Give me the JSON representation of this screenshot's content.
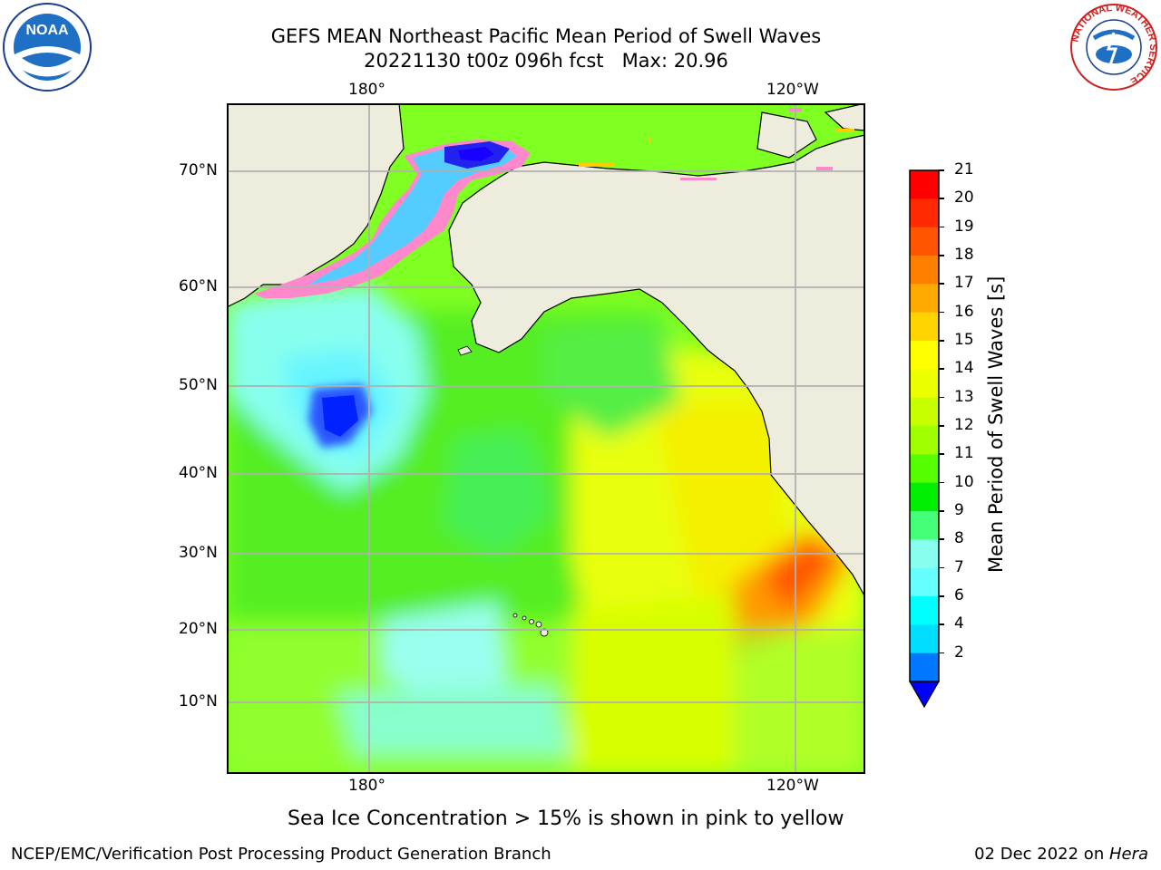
{
  "title": {
    "line1": "GEFS MEAN Northeast Pacific Mean Period of Swell Waves",
    "line2": "20221130 t00z 096h fcst   Max: 20.96"
  },
  "map": {
    "lon_ticks": [
      "180°",
      "120°W"
    ],
    "lat_ticks": [
      "70°N",
      "60°N",
      "50°N",
      "40°N",
      "30°N",
      "20°N",
      "10°N"
    ],
    "land_color": "#eeecdc",
    "grid_color": "#b0b0b0"
  },
  "colorbar": {
    "label": "Mean Period of Swell Waves [s]",
    "ticks": [
      "21",
      "20",
      "19",
      "18",
      "17",
      "16",
      "15",
      "14",
      "13",
      "12",
      "11",
      "10",
      "9",
      "8",
      "7",
      "6",
      "4",
      "2"
    ],
    "colors_top_to_bottom": [
      "#ff0000",
      "#ff2a00",
      "#ff5500",
      "#ff8000",
      "#ffaa00",
      "#ffd400",
      "#ffff00",
      "#ecff00",
      "#c8ff00",
      "#a0ff00",
      "#55ff00",
      "#00ee00",
      "#44ff77",
      "#88ffee",
      "#66ffff",
      "#00ffff",
      "#00ddff",
      "#0077ff"
    ],
    "extend_color": "#0000ff"
  },
  "note": "Sea Ice Concentration > 15% is shown in pink to yellow",
  "footer": {
    "left": "NCEP/EMC/Verification Post Processing Product Generation Branch",
    "right_prefix": "02 Dec 2022 on ",
    "right_host": "Hera"
  },
  "logos": {
    "noaa_text": "NOAA",
    "nws_ring_text": "NATIONAL WEATHER SERVICE"
  }
}
